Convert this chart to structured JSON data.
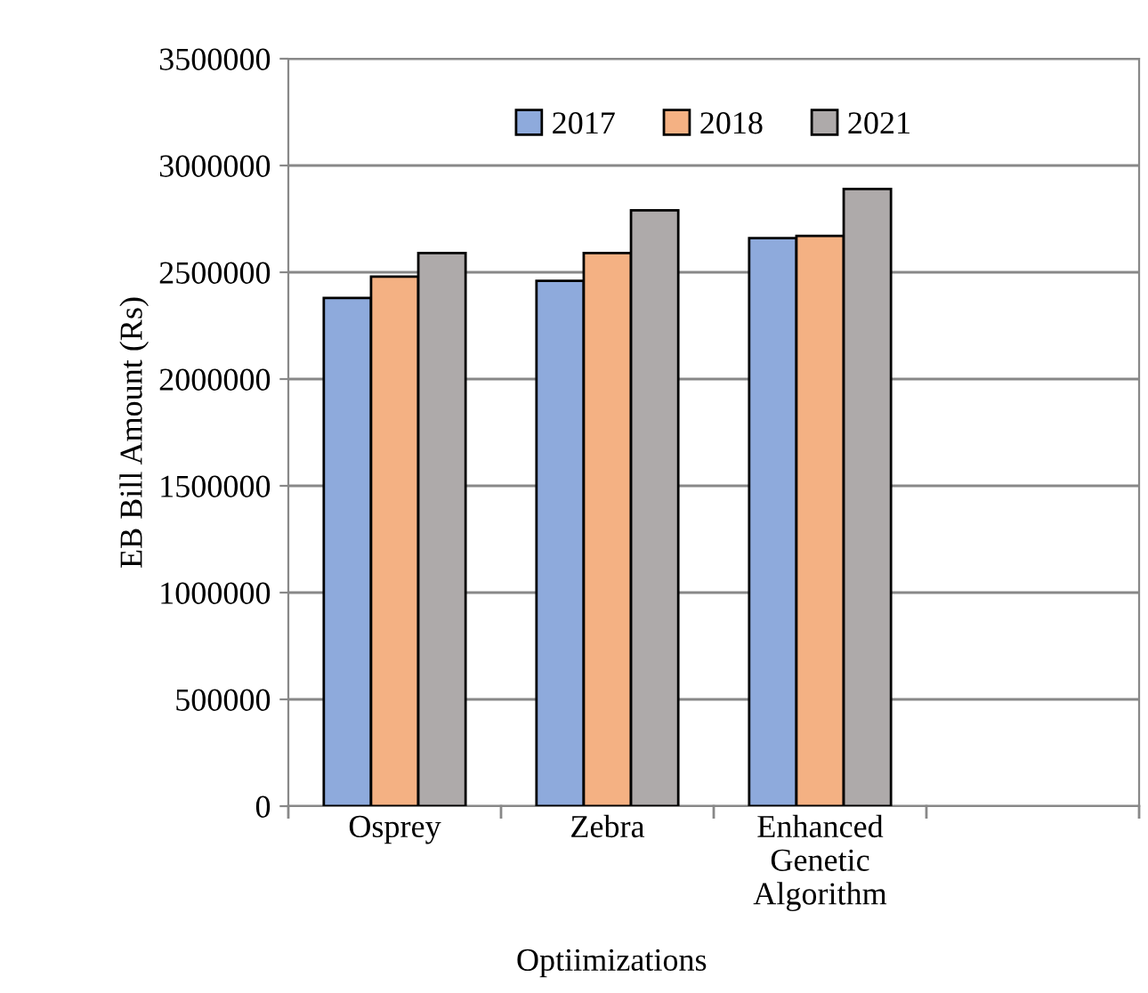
{
  "chart_data": {
    "type": "bar",
    "xlabel": "Optiimizations",
    "ylabel": "EB Bill Amount (Rs)",
    "categories": [
      "Osprey",
      "Zebra",
      "Enhanced\nGenetic\nAlgorithm",
      null
    ],
    "series": [
      {
        "name": "2017",
        "color": "#8eaadc",
        "values": [
          2380000,
          2460000,
          2660000,
          null
        ]
      },
      {
        "name": "2018",
        "color": "#f4b183",
        "values": [
          2480000,
          2590000,
          2670000,
          null
        ]
      },
      {
        "name": "2021",
        "color": "#aeaaaa",
        "values": [
          2590000,
          2790000,
          2890000,
          null
        ]
      }
    ],
    "ylim": [
      0,
      3500000
    ],
    "yticks": [
      0,
      500000,
      1000000,
      1500000,
      2000000,
      2500000,
      3000000,
      3500000
    ],
    "grid": "y",
    "legend": "top"
  }
}
